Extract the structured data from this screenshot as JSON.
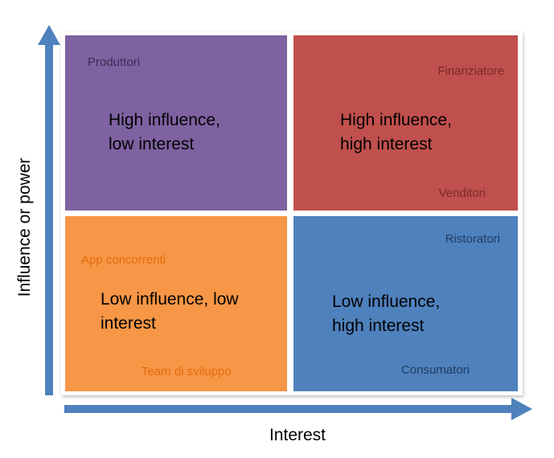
{
  "colors": {
    "high_influence_low_interest": "#7E62A1",
    "high_influence_high_interest": "#C0504D",
    "low_influence_low_interest": "#F79646",
    "low_influence_high_interest": "#4F81BD",
    "axis_arrow": "#4F81BD",
    "stakeholder_purple": "#3A2E55",
    "stakeholder_red": "#7A2A28",
    "stakeholder_orange": "#E46C0A",
    "stakeholder_blue": "#1F3D63"
  },
  "axes": {
    "y_label": "Influence or power",
    "x_label": "Interest"
  },
  "quadrants": {
    "top_left": {
      "label": "High influence,\nlow interest",
      "stakeholders": [
        "Produttori"
      ]
    },
    "top_right": {
      "label": "High influence,\nhigh interest",
      "stakeholders": [
        "Finanziatore",
        "Venditori"
      ]
    },
    "bottom_left": {
      "label": "Low influence, low\ninterest",
      "stakeholders": [
        "App concorrenti",
        "Team di sviluppo"
      ]
    },
    "bottom_right": {
      "label": "Low influence,\nhigh interest",
      "stakeholders": [
        "Ristoratori",
        "Consumatori"
      ]
    }
  }
}
